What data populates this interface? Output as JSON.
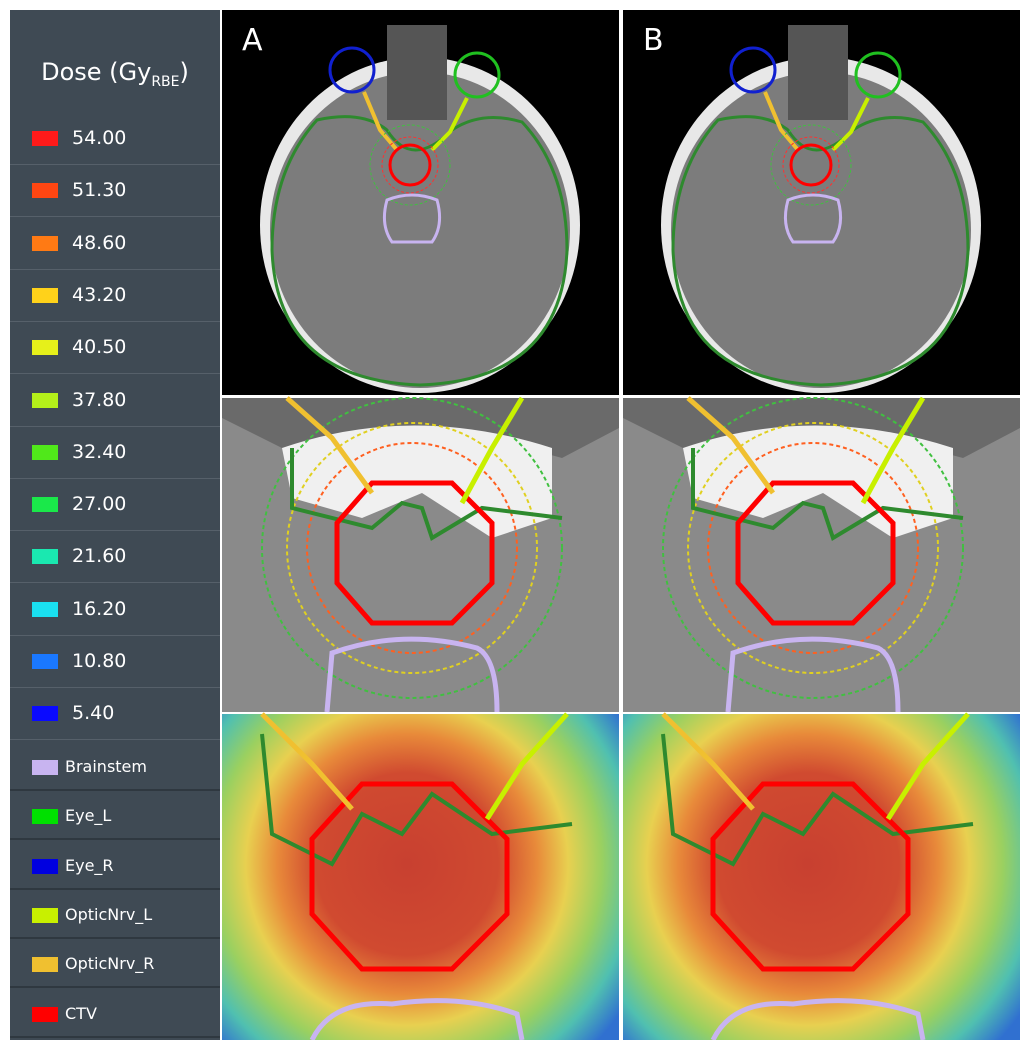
{
  "figure": {
    "panels": [
      "A",
      "B"
    ],
    "legend": {
      "title": {
        "text": "Dose (Gy",
        "subscript": "RBE",
        "close": ")"
      },
      "dose_levels": [
        {
          "label": "54.00",
          "color": "#ff1a1a"
        },
        {
          "label": "51.30",
          "color": "#ff4612"
        },
        {
          "label": "48.60",
          "color": "#ff7a14"
        },
        {
          "label": "43.20",
          "color": "#ffd21a"
        },
        {
          "label": "40.50",
          "color": "#e6f01a"
        },
        {
          "label": "37.80",
          "color": "#b4f01a"
        },
        {
          "label": "32.40",
          "color": "#50e81a"
        },
        {
          "label": "27.00",
          "color": "#1ae84a"
        },
        {
          "label": "21.60",
          "color": "#1ae8b0"
        },
        {
          "label": "16.20",
          "color": "#1ae0f0"
        },
        {
          "label": "10.80",
          "color": "#1a78ff"
        },
        {
          "label": "5.40",
          "color": "#0a0aff"
        }
      ],
      "structures": [
        {
          "label": "Brainstem",
          "color": "#c8b4f0"
        },
        {
          "label": "Eye_L",
          "color": "#00e000"
        },
        {
          "label": "Eye_R",
          "color": "#0000e0"
        },
        {
          "label": "OpticNrv_L",
          "color": "#c8f000"
        },
        {
          "label": "OpticNrv_R",
          "color": "#f0c030"
        },
        {
          "label": "CTV",
          "color": "#ff0000"
        }
      ]
    }
  }
}
